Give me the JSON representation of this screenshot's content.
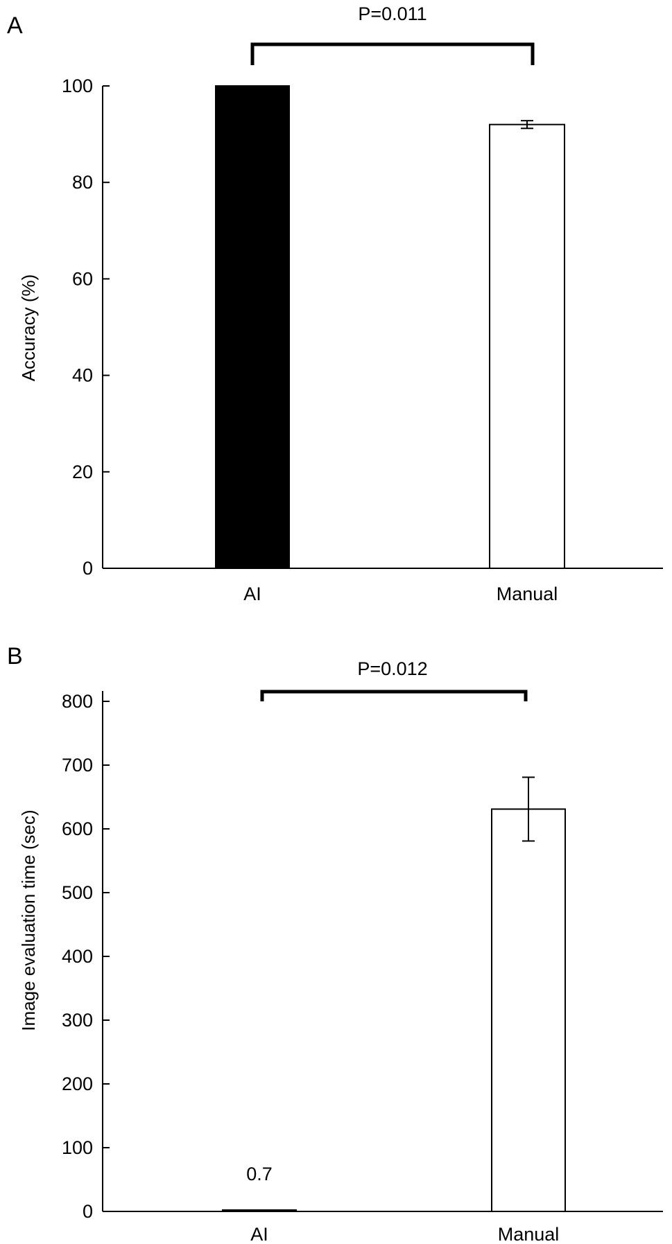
{
  "chart_data": [
    {
      "panel_label": "A",
      "type": "bar",
      "categories": [
        "AI",
        "Manual"
      ],
      "values": [
        100,
        92
      ],
      "error": [
        0,
        0.8
      ],
      "bar_fills": [
        "#000000",
        "#ffffff"
      ],
      "ylabel": "Accuracy (%)",
      "ylim": [
        0,
        100
      ],
      "yticks": [
        "0",
        "20",
        "40",
        "60",
        "80",
        "100"
      ],
      "significance": "P=0.011",
      "data_labels": [
        "",
        ""
      ]
    },
    {
      "panel_label": "B",
      "type": "bar",
      "categories": [
        "AI",
        "Manual"
      ],
      "values": [
        0.7,
        631
      ],
      "error": [
        0,
        50
      ],
      "bar_fills": [
        "#000000",
        "#ffffff"
      ],
      "ylabel": "Image evaluation time (sec)",
      "ylim": [
        0,
        800
      ],
      "yticks": [
        "0",
        "100",
        "200",
        "300",
        "400",
        "500",
        "600",
        "700",
        "800"
      ],
      "significance": "P=0.012",
      "data_labels": [
        "0.7",
        ""
      ]
    }
  ]
}
